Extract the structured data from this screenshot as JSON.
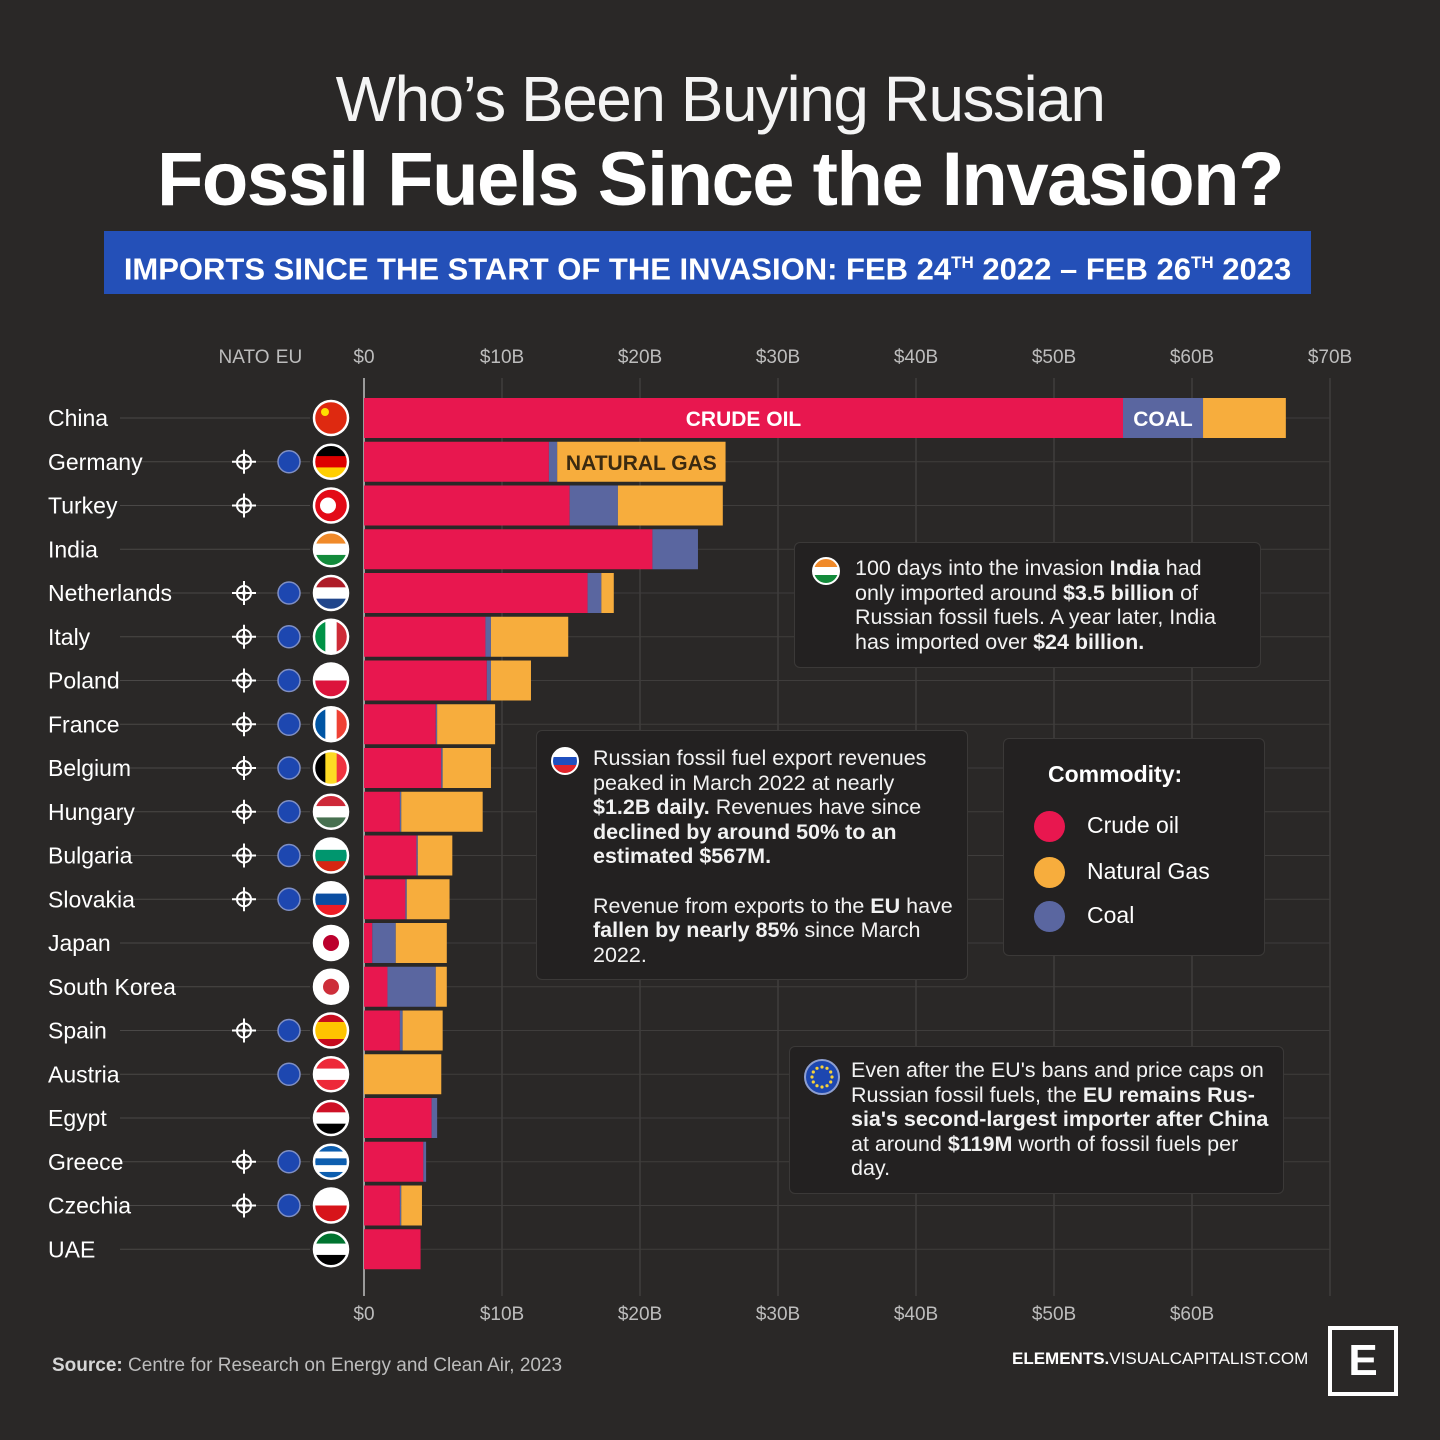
{
  "header": {
    "title_line1": "Who’s Been Buying Russian",
    "title_line2": "Fossil Fuels Since the Invasion?",
    "banner_a": "IMPORTS SINCE THE START OF THE INVASION:  FEB 24",
    "banner_sup1": "TH",
    "banner_b": " 2022 – FEB 26",
    "banner_sup2": "TH",
    "banner_c": " 2023"
  },
  "columns": {
    "nato": "NATO",
    "eu": "EU"
  },
  "bar_labels": {
    "crude": "CRUDE OIL",
    "coal": "COAL",
    "gas": "NATURAL GAS"
  },
  "colors": {
    "crude": "#e8174f",
    "gas": "#f7ad3d",
    "coal": "#5a66a0"
  },
  "chart_data": {
    "type": "bar",
    "orientation": "horizontal",
    "stacked": true,
    "xlim": [
      0,
      70
    ],
    "x_ticks_top": [
      "$0",
      "$10B",
      "$20B",
      "$30B",
      "$40B",
      "$50B",
      "$60B",
      "$70B"
    ],
    "x_ticks_bottom": [
      "$0",
      "$10B",
      "$20B",
      "$30B",
      "$40B",
      "$50B",
      "$60B"
    ],
    "series_order": [
      "crude",
      "coal",
      "gas"
    ],
    "categories": [
      "China",
      "Germany",
      "Turkey",
      "India",
      "Netherlands",
      "Italy",
      "Poland",
      "France",
      "Belgium",
      "Hungary",
      "Bulgaria",
      "Slovakia",
      "Japan",
      "South Korea",
      "Spain",
      "Austria",
      "Egypt",
      "Greece",
      "Czechia",
      "UAE"
    ],
    "rows": [
      {
        "country": "China",
        "nato": false,
        "eu": false,
        "crude": 55.0,
        "coal": 5.8,
        "gas": 6.0
      },
      {
        "country": "Germany",
        "nato": true,
        "eu": true,
        "crude": 13.4,
        "coal": 0.6,
        "gas": 12.2
      },
      {
        "country": "Turkey",
        "nato": true,
        "eu": false,
        "crude": 14.9,
        "coal": 3.5,
        "gas": 7.6
      },
      {
        "country": "India",
        "nato": false,
        "eu": false,
        "crude": 20.9,
        "coal": 3.3,
        "gas": 0
      },
      {
        "country": "Netherlands",
        "nato": true,
        "eu": true,
        "crude": 16.2,
        "coal": 1.0,
        "gas": 0.9
      },
      {
        "country": "Italy",
        "nato": true,
        "eu": true,
        "crude": 8.8,
        "coal": 0.4,
        "gas": 5.6
      },
      {
        "country": "Poland",
        "nato": true,
        "eu": true,
        "crude": 8.9,
        "coal": 0.3,
        "gas": 2.9
      },
      {
        "country": "France",
        "nato": true,
        "eu": true,
        "crude": 5.2,
        "coal": 0.1,
        "gas": 4.2
      },
      {
        "country": "Belgium",
        "nato": true,
        "eu": true,
        "crude": 5.6,
        "coal": 0.1,
        "gas": 3.5
      },
      {
        "country": "Hungary",
        "nato": true,
        "eu": true,
        "crude": 2.6,
        "coal": 0.1,
        "gas": 5.9
      },
      {
        "country": "Bulgaria",
        "nato": true,
        "eu": true,
        "crude": 3.8,
        "coal": 0.1,
        "gas": 2.5
      },
      {
        "country": "Slovakia",
        "nato": true,
        "eu": true,
        "crude": 3.0,
        "coal": 0.1,
        "gas": 3.1
      },
      {
        "country": "Japan",
        "nato": false,
        "eu": false,
        "crude": 0.6,
        "coal": 1.7,
        "gas": 3.7
      },
      {
        "country": "South Korea",
        "nato": false,
        "eu": false,
        "crude": 1.7,
        "coal": 3.5,
        "gas": 0.8
      },
      {
        "country": "Spain",
        "nato": true,
        "eu": true,
        "crude": 2.6,
        "coal": 0.2,
        "gas": 2.9
      },
      {
        "country": "Austria",
        "nato": false,
        "eu": true,
        "crude": 0,
        "coal": 0,
        "gas": 5.6
      },
      {
        "country": "Egypt",
        "nato": false,
        "eu": false,
        "crude": 4.9,
        "coal": 0.4,
        "gas": 0
      },
      {
        "country": "Greece",
        "nato": true,
        "eu": true,
        "crude": 4.3,
        "coal": 0.2,
        "gas": 0
      },
      {
        "country": "Czechia",
        "nato": true,
        "eu": true,
        "crude": 2.6,
        "coal": 0.1,
        "gas": 1.5
      },
      {
        "country": "UAE",
        "nato": false,
        "eu": false,
        "crude": 4.1,
        "coal": 0,
        "gas": 0
      }
    ]
  },
  "annotations": {
    "india": {
      "p1": "100 days into the invasion ",
      "b1": "India",
      "p2": " had only imported around ",
      "b2": "$3.5 billion",
      "p3": " of Russian fossil fuels. A year later, India has imported over ",
      "b3": "$24 billion."
    },
    "russia": {
      "p1": "Russian fossil fuel export revenues peaked in March 2022 at nearly ",
      "b1": "$1.2B daily.",
      "p2": " Revenues have since ",
      "b2": "declined by around 50% to an estimated $567M.",
      "p3": "Revenue from exports to the ",
      "b3": "EU",
      "p4": " have ",
      "b4": "fallen by nearly 85%",
      "p5": " since March 2022."
    },
    "eu": {
      "p1": "Even after the EU's bans and price caps on Russian fossil fuels, the ",
      "b1": "EU remains Rus-sia's second-largest importer after China",
      "p2": " at around ",
      "b2": "$119M",
      "p3": " worth of fossil fuels per day."
    }
  },
  "legend": {
    "title": "Commodity:",
    "items": [
      {
        "label": "Crude oil",
        "color": "#e8174f"
      },
      {
        "label": "Natural Gas",
        "color": "#f7ad3d"
      },
      {
        "label": "Coal",
        "color": "#5a66a0"
      }
    ]
  },
  "footer": {
    "source_label": "Source:",
    "source_text": " Centre for Research on Energy and Clean Air, 2023",
    "brand_bold": "ELEMENTS.",
    "brand_rest": "VISUALCAPITALIST.COM",
    "logo_letter": "E"
  }
}
